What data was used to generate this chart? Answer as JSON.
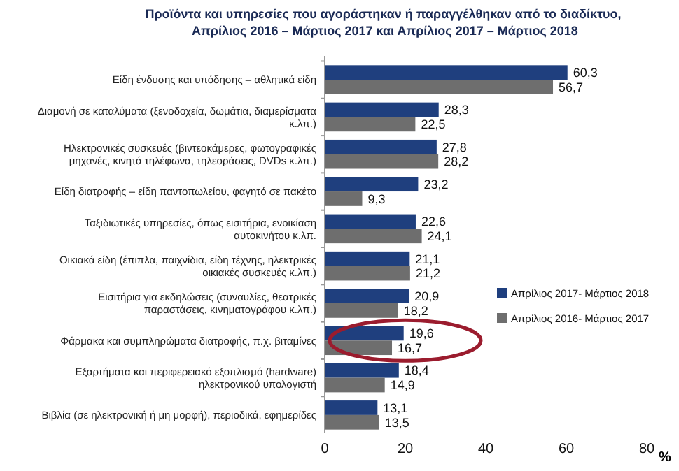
{
  "chart_data": {
    "type": "bar",
    "orientation": "horizontal",
    "title": "Προϊόντα και υπηρεσίες που αγοράστηκαν ή παραγγέλθηκαν από το διαδίκτυο,  Απρίλιος 2016 – Μάρτιος 2017 και Απρίλιος 2017 – Μάρτιος 2018",
    "xlabel": "%",
    "categories": [
      "Είδη ένδυσης και υπόδησης – αθλητικά είδη",
      "Διαμονή σε καταλύματα (ξενοδοχεία, δωμάτια, διαμερίσματα κ.λπ.)",
      "Ηλεκτρονικές συσκευές (βιντεοκάμερες, φωτογραφικές μηχανές, κινητά τηλέφωνα, τηλεοράσεις, DVDs κ.λπ.)",
      "Είδη διατροφής – είδη παντοπωλείου, φαγητό σε πακέτο",
      "Ταξιδιωτικές υπηρεσίες, όπως εισιτήρια, ενοικίαση αυτοκινήτου κ.λπ.",
      "Οικιακά είδη (έπιπλα, παιχνίδια, είδη τέχνης, ηλεκτρικές οικιακές συσκευές  κ.λπ.)",
      "Εισιτήρια για εκδηλώσεις (συναυλίες, θεατρικές παραστάσεις, κινηματογράφου κ.λπ.)",
      "Φάρμακα και συμπληρώματα διατροφής,  π.χ. βιταμίνες",
      "Εξαρτήματα και περιφερειακό εξοπλισμό (hardware) ηλεκτρονικού υπολογιστή",
      "Βιβλία (σε ηλεκτρονική ή μη μορφή), περιοδικά, εφημερίδες"
    ],
    "series": [
      {
        "name": "Απρίλιος 2017- Μάρτιος 2018",
        "color": "#1f3f7e",
        "values": [
          60.3,
          28.3,
          27.8,
          23.2,
          22.6,
          21.1,
          20.9,
          19.6,
          18.4,
          13.1
        ],
        "value_labels": [
          "60,3",
          "28,3",
          "27,8",
          "23,2",
          "22,6",
          "21,1",
          "20,9",
          "19,6",
          "18,4",
          "13,1"
        ]
      },
      {
        "name": "Απρίλιος 2016- Μάρτιος 2017",
        "color": "#6e6e6e",
        "values": [
          56.7,
          22.5,
          28.2,
          9.3,
          24.1,
          21.2,
          18.2,
          16.7,
          14.9,
          13.5
        ],
        "value_labels": [
          "56,7",
          "22,5",
          "28,2",
          "9,3",
          "24,1",
          "21,2",
          "18,2",
          "16,7",
          "14,9",
          "13,5"
        ]
      }
    ],
    "xlim": [
      0,
      80
    ],
    "xticks": [
      0,
      20,
      40,
      60,
      80
    ],
    "legend": "right",
    "grid": false
  }
}
